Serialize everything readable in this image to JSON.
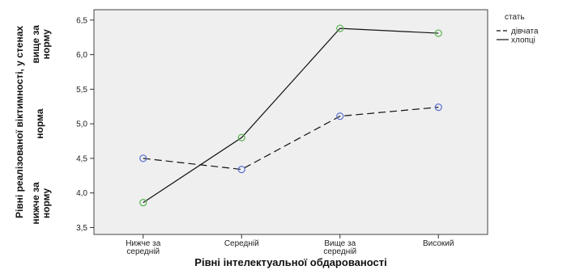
{
  "chart_data": {
    "type": "line",
    "categories": [
      "Нижче за середній",
      "Середній",
      "Вище за середній",
      "Високий"
    ],
    "category_label_lines": [
      [
        "Нижче за",
        "середній"
      ],
      [
        "Середній"
      ],
      [
        "Вище за",
        "середній"
      ],
      [
        "Високий"
      ]
    ],
    "series": [
      {
        "name": "дівчата",
        "values": [
          4.5,
          4.34,
          5.11,
          5.24
        ],
        "line_style": "dashed",
        "marker_color": "#5b6fd1"
      },
      {
        "name": "хлопці",
        "values": [
          3.86,
          4.8,
          6.38,
          6.31
        ],
        "line_style": "solid",
        "marker_color": "#5ab552"
      }
    ],
    "xlabel": "Рівні інтелектуальної обдарованості",
    "ylabel_main": "Рівні реалізованої віктимності, у стенах",
    "ylabel_bands": [
      {
        "lines": [
          "вище за",
          "норму"
        ]
      },
      {
        "lines": [
          "норма"
        ]
      },
      {
        "lines": [
          "нижче за",
          "норму"
        ]
      }
    ],
    "ylim": [
      3.4,
      6.65
    ],
    "yticks": [
      3.5,
      4.0,
      4.5,
      5.0,
      5.5,
      6.0,
      6.5
    ],
    "ytick_labels": [
      "3,5",
      "4,0",
      "4,5",
      "5,0",
      "5,5",
      "6,0",
      "6,5"
    ],
    "legend_title": "стать",
    "legend_position": "right",
    "grid": false,
    "colors": {
      "plot_background": "#efefef",
      "line": "#111111"
    }
  }
}
